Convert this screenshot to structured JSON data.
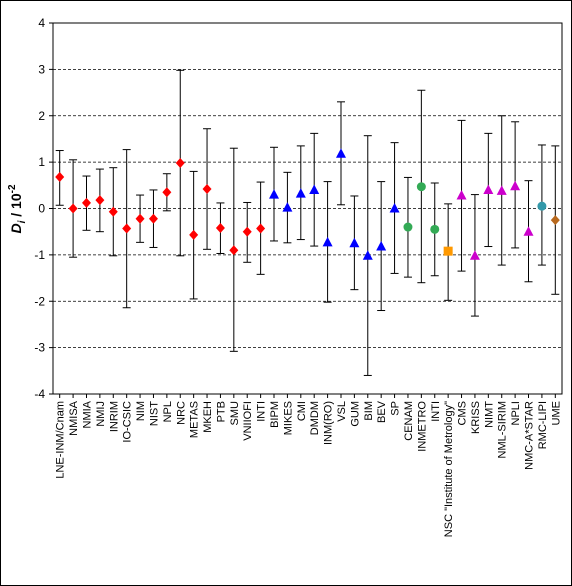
{
  "chart_data": {
    "type": "scatter",
    "title": "",
    "xlabel": "",
    "ylabel": {
      "var": "D",
      "sub": "i",
      "sep": " / 10",
      "exp": "-2"
    },
    "ylim": [
      -4,
      4
    ],
    "yticks": [
      4,
      3,
      2,
      1,
      0,
      -1,
      -2,
      -3,
      -4
    ],
    "grid": "horizontal dashed",
    "legend": "none",
    "categories": [
      "LNE-INM/Cnam",
      "NMISA",
      "NMIA",
      "NMIJ",
      "INRIM",
      "IO-CSIC",
      "NIM",
      "NIST",
      "NPL",
      "NRC",
      "METAS",
      "MKEH",
      "PTB",
      "SMU",
      "VNIIOFI",
      "INTI",
      "BIPM",
      "MIKES",
      "CMI",
      "DMDM",
      "INM(RO)",
      "VSL",
      "GUM",
      "BIM",
      "BEV",
      "SP",
      "CENAM",
      "INMETRO",
      "INTI",
      "NSC \"Institute of Metrology\"",
      "CMS",
      "KRISS",
      "NIMT",
      "NML-SIRIM",
      "NPLI",
      "NMC-A*STAR",
      "RMC-LIPI",
      "UME"
    ],
    "series": [
      {
        "marker": "diamond",
        "color": "#ff0000",
        "x": [
          "LNE-INM/Cnam",
          "NMISA",
          "NMIA",
          "NMIJ",
          "INRIM",
          "IO-CSIC",
          "NIM",
          "NIST",
          "NPL",
          "NRC",
          "METAS",
          "MKEH",
          "PTB",
          "SMU",
          "VNIIOFI",
          "INTI"
        ],
        "y": [
          0.68,
          0.0,
          0.12,
          0.18,
          -0.07,
          -0.43,
          -0.22,
          -0.22,
          0.35,
          0.98,
          -0.57,
          0.42,
          -0.42,
          -0.9,
          -0.5,
          -0.43
        ],
        "upper": [
          1.25,
          1.05,
          0.7,
          0.85,
          0.88,
          1.27,
          0.29,
          0.4,
          0.75,
          2.98,
          0.8,
          1.72,
          0.12,
          1.3,
          0.13,
          0.57
        ],
        "lower": [
          0.07,
          -1.05,
          -0.47,
          -0.5,
          -1.02,
          -2.14,
          -0.73,
          -0.84,
          -0.05,
          -1.02,
          -1.95,
          -0.88,
          -0.97,
          -3.08,
          -1.16,
          -1.42
        ]
      },
      {
        "marker": "triangle",
        "color": "#0000ff",
        "x": [
          "BIPM",
          "MIKES",
          "CMI",
          "DMDM",
          "INM(RO)",
          "VSL",
          "GUM",
          "BIM",
          "BEV",
          "SP"
        ],
        "y": [
          0.3,
          0.02,
          0.32,
          0.4,
          -0.73,
          1.18,
          -0.75,
          -1.02,
          -0.82,
          0.0
        ],
        "upper": [
          1.32,
          0.78,
          1.35,
          1.62,
          0.58,
          2.3,
          0.27,
          1.57,
          0.58,
          1.42
        ],
        "lower": [
          -0.7,
          -0.74,
          -0.67,
          -0.81,
          -2.02,
          0.08,
          -1.75,
          -3.6,
          -2.2,
          -1.4
        ]
      },
      {
        "marker": "circle",
        "color": "#33aa55",
        "x": [
          "CENAM",
          "INMETRO",
          "INTI"
        ],
        "y": [
          -0.4,
          0.47,
          -0.45
        ],
        "upper": [
          0.67,
          2.55,
          0.55
        ],
        "lower": [
          -1.48,
          -1.6,
          -1.45
        ]
      },
      {
        "marker": "square",
        "color": "#ff9900",
        "x": [
          "NSC \"Institute of Metrology\""
        ],
        "y": [
          -0.92
        ],
        "upper": [
          0.1
        ],
        "lower": [
          -1.98
        ]
      },
      {
        "marker": "triangle",
        "color": "#cc00cc",
        "x": [
          "CMS",
          "KRISS",
          "NIMT",
          "NML-SIRIM",
          "NPLI",
          "NMC-A*STAR"
        ],
        "y": [
          0.28,
          -1.02,
          0.4,
          0.38,
          0.48,
          -0.5
        ],
        "upper": [
          1.9,
          0.3,
          1.62,
          2.0,
          1.87,
          0.6
        ],
        "lower": [
          -1.35,
          -2.32,
          -0.82,
          -1.22,
          -0.85,
          -1.58
        ]
      },
      {
        "marker": "circle",
        "color": "#3399aa",
        "x": [
          "RMC-LIPI"
        ],
        "y": [
          0.05
        ],
        "upper": [
          1.37
        ],
        "lower": [
          -1.22
        ]
      },
      {
        "marker": "diamond",
        "color": "#b8691e",
        "x": [
          "UME"
        ],
        "y": [
          -0.25
        ],
        "upper": [
          1.35
        ],
        "lower": [
          -1.85
        ]
      }
    ]
  }
}
